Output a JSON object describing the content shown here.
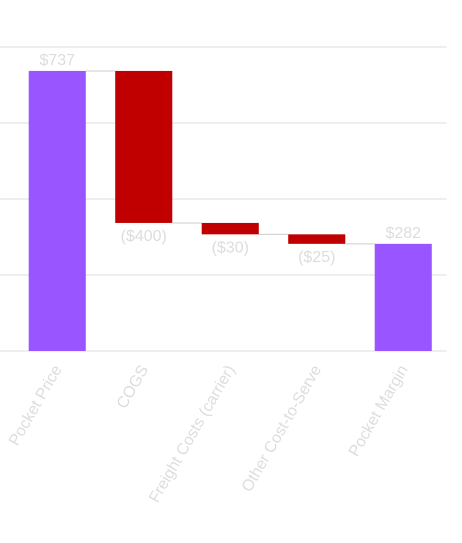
{
  "chart_data": {
    "type": "waterfall",
    "categories": [
      "Pocket Price",
      "COGS",
      "Freight Costs (carrier)",
      "Other Cost-to-Serve",
      "Pocket Margin"
    ],
    "values": [
      737,
      -400,
      -30,
      -25,
      282
    ],
    "value_labels": [
      "$737",
      "($400)",
      "($30)",
      "($25)",
      "$282"
    ],
    "colors": {
      "total": "#9955ff",
      "decrease": "#c00000"
    },
    "ylim": [
      0,
      800
    ],
    "yticks": [
      0,
      200,
      400,
      600,
      800
    ],
    "grid": true
  }
}
